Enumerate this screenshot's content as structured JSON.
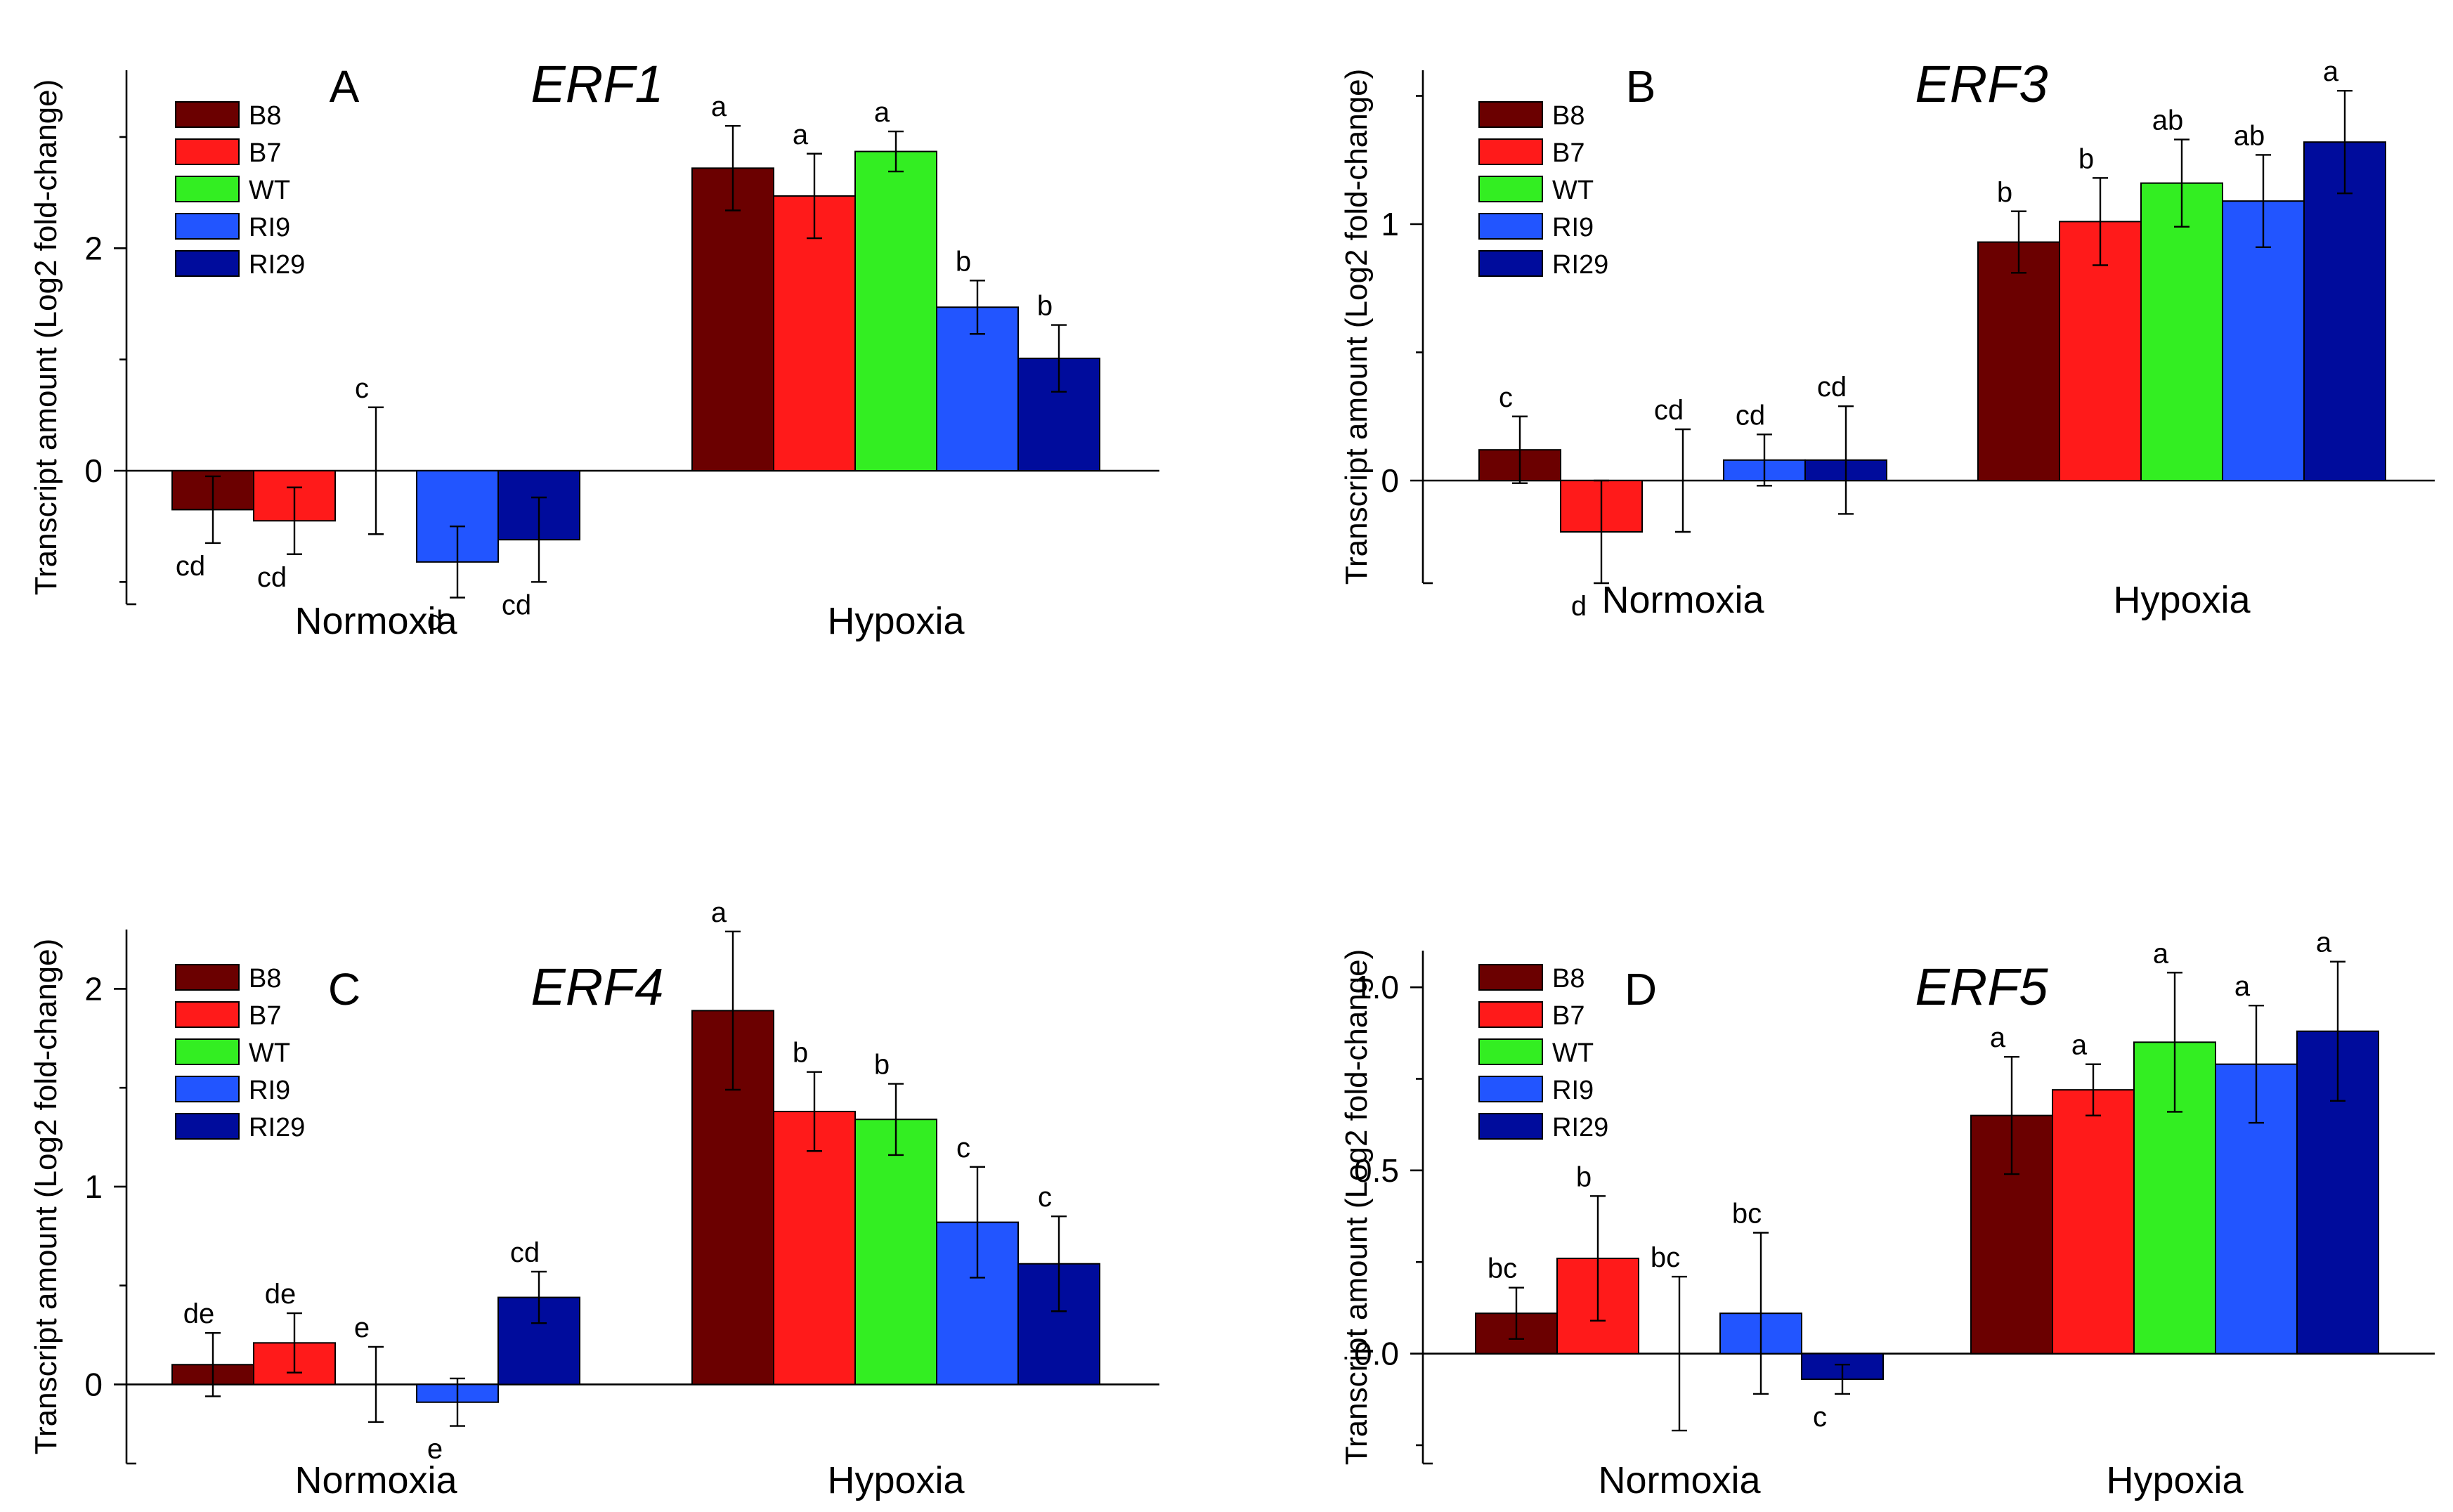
{
  "colors": {
    "B8": "#6b0000",
    "B7": "#ff1a1a",
    "WT": "#33ee22",
    "RI9": "#2255ff",
    "RI29": "#000c9c"
  },
  "shared": {
    "ylabel": "Transcript amount (Log2 fold-change)",
    "groups": [
      "Normoxia",
      "Hypoxia"
    ],
    "genotypes": [
      "B8",
      "B7",
      "WT",
      "RI9",
      "RI29"
    ]
  },
  "chart_data": [
    {
      "type": "bar",
      "panel_letter": "A",
      "title": "ERF1",
      "ylabel": "Transcript amount (Log2 fold-change)",
      "ylim": [
        -1.2,
        3.6
      ],
      "yticks": [
        0,
        2
      ],
      "ytick_labels": [
        "0",
        "2"
      ],
      "minor_yticks": [
        -1,
        1,
        3
      ],
      "grid": false,
      "legend_position": "top-left",
      "categories": [
        "Normoxia",
        "Hypoxia"
      ],
      "series": [
        {
          "name": "B8",
          "values": [
            -0.35,
            2.72
          ],
          "errors": [
            0.3,
            0.38
          ],
          "letters": [
            "cd",
            "a"
          ]
        },
        {
          "name": "B7",
          "values": [
            -0.45,
            2.47
          ],
          "errors": [
            0.3,
            0.38
          ],
          "letters": [
            "cd",
            "a"
          ]
        },
        {
          "name": "WT",
          "values": [
            0.0,
            2.87
          ],
          "errors": [
            0.57,
            0.18
          ],
          "letters": [
            "c",
            "a"
          ]
        },
        {
          "name": "RI9",
          "values": [
            -0.82,
            1.47
          ],
          "errors": [
            0.32,
            0.24
          ],
          "letters": [
            "d",
            "b"
          ]
        },
        {
          "name": "RI29",
          "values": [
            -0.62,
            1.01
          ],
          "errors": [
            0.38,
            0.3
          ],
          "letters": [
            "cd",
            "b"
          ]
        }
      ]
    },
    {
      "type": "bar",
      "panel_letter": "B",
      "title": "ERF3",
      "ylabel": "Transcript amount (Log2 fold-change)",
      "ylim": [
        -0.4,
        1.6
      ],
      "yticks": [
        0,
        1
      ],
      "ytick_labels": [
        "0",
        "1"
      ],
      "minor_yticks": [
        0.5,
        1.5
      ],
      "grid": false,
      "legend_position": "top-left",
      "categories": [
        "Normoxia",
        "Hypoxia"
      ],
      "series": [
        {
          "name": "B8",
          "values": [
            0.12,
            0.93
          ],
          "errors": [
            0.13,
            0.12
          ],
          "letters": [
            "c",
            "b"
          ]
        },
        {
          "name": "B7",
          "values": [
            -0.2,
            1.01
          ],
          "errors": [
            0.2,
            0.17
          ],
          "letters": [
            "d",
            "b"
          ]
        },
        {
          "name": "WT",
          "values": [
            0.0,
            1.16
          ],
          "errors": [
            0.2,
            0.17
          ],
          "letters": [
            "cd",
            "ab"
          ]
        },
        {
          "name": "RI9",
          "values": [
            0.08,
            1.09
          ],
          "errors": [
            0.1,
            0.18
          ],
          "letters": [
            "cd",
            "ab"
          ]
        },
        {
          "name": "RI29",
          "values": [
            0.08,
            1.32
          ],
          "errors": [
            0.21,
            0.2
          ],
          "letters": [
            "cd",
            "a"
          ]
        }
      ]
    },
    {
      "type": "bar",
      "panel_letter": "C",
      "title": "ERF4",
      "ylabel": "Transcript amount (Log2 fold-change)",
      "ylim": [
        -0.4,
        2.3
      ],
      "yticks": [
        0,
        1,
        2
      ],
      "ytick_labels": [
        "0",
        "1",
        "2"
      ],
      "minor_yticks": [
        0.5,
        1.5
      ],
      "grid": false,
      "legend_position": "top-left",
      "categories": [
        "Normoxia",
        "Hypoxia"
      ],
      "series": [
        {
          "name": "B8",
          "values": [
            0.1,
            1.89
          ],
          "errors": [
            0.16,
            0.4
          ],
          "letters": [
            "de",
            "a"
          ]
        },
        {
          "name": "B7",
          "values": [
            0.21,
            1.38
          ],
          "errors": [
            0.15,
            0.2
          ],
          "letters": [
            "de",
            "b"
          ]
        },
        {
          "name": "WT",
          "values": [
            0.0,
            1.34
          ],
          "errors": [
            0.19,
            0.18
          ],
          "letters": [
            "e",
            "b"
          ]
        },
        {
          "name": "RI9",
          "values": [
            -0.09,
            0.82
          ],
          "errors": [
            0.12,
            0.28
          ],
          "letters": [
            "e",
            "c"
          ]
        },
        {
          "name": "RI29",
          "values": [
            0.44,
            0.61
          ],
          "errors": [
            0.13,
            0.24
          ],
          "letters": [
            "cd",
            "c"
          ]
        }
      ]
    },
    {
      "type": "bar",
      "panel_letter": "D",
      "title": "ERF5",
      "ylabel": "Transcript amount (Log2 fold-change)",
      "ylim": [
        -0.3,
        1.1
      ],
      "yticks": [
        0.0,
        0.5,
        1.0
      ],
      "ytick_labels": [
        "0.0",
        "0.5",
        "1.0"
      ],
      "minor_yticks": [
        -0.25,
        0.25,
        0.75
      ],
      "grid": false,
      "legend_position": "top-left",
      "categories": [
        "Normoxia",
        "Hypoxia"
      ],
      "series": [
        {
          "name": "B8",
          "values": [
            0.11,
            0.65
          ],
          "errors": [
            0.07,
            0.16
          ],
          "letters": [
            "bc",
            "a"
          ]
        },
        {
          "name": "B7",
          "values": [
            0.26,
            0.72
          ],
          "errors": [
            0.17,
            0.07
          ],
          "letters": [
            "b",
            "a"
          ]
        },
        {
          "name": "WT",
          "values": [
            0.0,
            0.85
          ],
          "errors": [
            0.21,
            0.19
          ],
          "letters": [
            "bc",
            "a"
          ]
        },
        {
          "name": "RI9",
          "values": [
            0.11,
            0.79
          ],
          "errors": [
            0.22,
            0.16
          ],
          "letters": [
            "bc",
            "a"
          ]
        },
        {
          "name": "RI29",
          "values": [
            -0.07,
            0.88
          ],
          "errors": [
            0.04,
            0.19
          ],
          "letters": [
            "c",
            "a"
          ]
        }
      ]
    }
  ]
}
